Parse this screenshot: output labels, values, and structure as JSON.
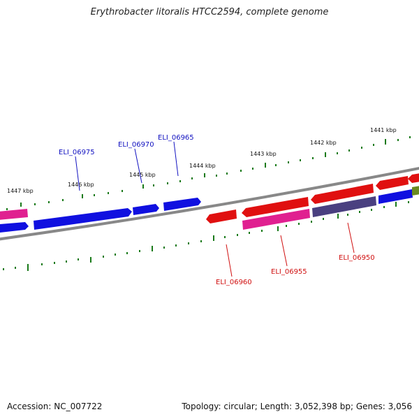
{
  "title": "Erythrobacter litoralis HTCC2594, complete genome",
  "footer": {
    "accession": "Accession: NC_007722",
    "summary": "Topology: circular; Length: 3,052,398 bp; Genes: 3,056"
  },
  "colors": {
    "forward_gene": "#1010e0",
    "reverse_gene": "#e01010",
    "pink_gene": "#e02090",
    "purple_gene": "#4a4080",
    "olive_gene": "#6a8a20",
    "backbone": "#888888",
    "ticks": "#1a7a1a",
    "forward_label": "#1010c0",
    "reverse_label": "#d01010"
  },
  "ticks": [
    "1441 kbp",
    "1442 kbp",
    "1443 kbp",
    "1444 kbp",
    "1445 kbp",
    "1446 kbp",
    "1447 kbp"
  ],
  "genes": {
    "forward": [
      "ELI_06965",
      "ELI_06970",
      "ELI_06975"
    ],
    "reverse": [
      "ELI_06950",
      "ELI_06955",
      "ELI_06960"
    ]
  }
}
